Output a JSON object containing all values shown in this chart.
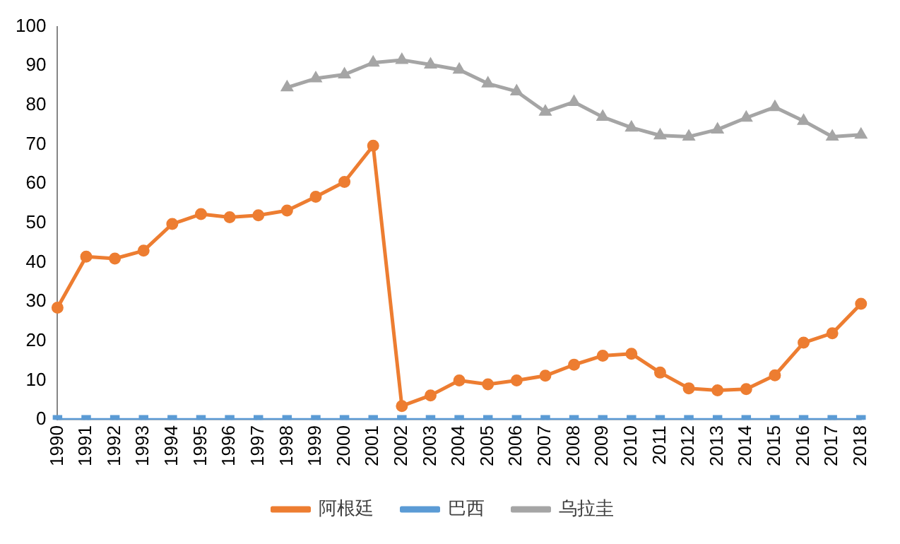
{
  "chart_data": {
    "type": "line",
    "categories": [
      "1990",
      "1991",
      "1992",
      "1993",
      "1994",
      "1995",
      "1996",
      "1997",
      "1998",
      "1999",
      "2000",
      "2001",
      "2002",
      "2003",
      "2004",
      "2005",
      "2006",
      "2007",
      "2008",
      "2009",
      "2010",
      "2011",
      "2012",
      "2013",
      "2014",
      "2015",
      "2016",
      "2017",
      "2018"
    ],
    "series": [
      {
        "name": "阿根廷",
        "color": "#ed7d31",
        "marker": "circle",
        "values": [
          28.5,
          41.5,
          41,
          43,
          49.8,
          52.3,
          51.5,
          52,
          53.2,
          56.7,
          60.5,
          69.7,
          3.5,
          6.2,
          10,
          9,
          10,
          11.2,
          14,
          16.3,
          16.8,
          12,
          8,
          7.5,
          7.8,
          11.3,
          19.6,
          22,
          29.5
        ]
      },
      {
        "name": "巴西",
        "color": "#5b9bd5",
        "marker": "square",
        "values": [
          0,
          0,
          0,
          0,
          0,
          0,
          0,
          0,
          0,
          0,
          0,
          0,
          0,
          0,
          0,
          0,
          0,
          0,
          0,
          0,
          0,
          0,
          0,
          0,
          0,
          0,
          0,
          0,
          0
        ]
      },
      {
        "name": "乌拉圭",
        "color": "#a5a5a5",
        "marker": "triangle",
        "values": [
          null,
          null,
          null,
          null,
          null,
          null,
          null,
          null,
          84.5,
          86.8,
          87.8,
          90.8,
          91.5,
          90.3,
          89,
          85.5,
          83.5,
          78.3,
          80.8,
          77,
          74.3,
          72.3,
          72,
          73.8,
          76.8,
          79.5,
          76,
          72,
          72.5
        ]
      }
    ],
    "ylim": [
      0,
      100
    ],
    "yticks": [
      0,
      10,
      20,
      30,
      40,
      50,
      60,
      70,
      80,
      90,
      100
    ],
    "grid": false,
    "legend": "bottom"
  }
}
